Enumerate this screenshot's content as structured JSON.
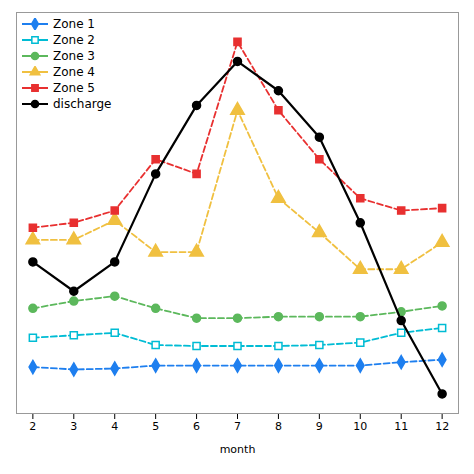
{
  "chart_data": {
    "type": "line",
    "xlabel": "month",
    "x": [
      2,
      3,
      4,
      5,
      6,
      7,
      8,
      9,
      10,
      11,
      12
    ],
    "xlim": [
      1.6,
      12.4
    ],
    "xticks": [
      2,
      3,
      4,
      5,
      6,
      7,
      8,
      9,
      10,
      11,
      12
    ],
    "ylim": [
      0.0,
      0.82
    ],
    "tick_labels": "x",
    "grid": false,
    "legend": "upper left",
    "series": [
      {
        "name": "Zone 1",
        "color": "#1e7fef",
        "marker": "diamond",
        "line_style": "dashed",
        "values": [
          0.095,
          0.09,
          0.092,
          0.098,
          0.098,
          0.098,
          0.098,
          0.098,
          0.098,
          0.105,
          0.11
        ]
      },
      {
        "name": "Zone 2",
        "color": "#00bcd4",
        "marker": "square-open",
        "line_style": "dashed",
        "values": [
          0.155,
          0.16,
          0.165,
          0.14,
          0.138,
          0.138,
          0.138,
          0.14,
          0.145,
          0.165,
          0.175
        ]
      },
      {
        "name": "Zone 3",
        "color": "#5cb85c",
        "marker": "circle",
        "line_style": "dashed",
        "values": [
          0.215,
          0.23,
          0.24,
          0.215,
          0.195,
          0.195,
          0.198,
          0.198,
          0.198,
          0.208,
          0.22
        ]
      },
      {
        "name": "Zone 4",
        "color": "#f0c040",
        "marker": "triangle",
        "line_style": "dashed",
        "values": [
          0.355,
          0.355,
          0.395,
          0.33,
          0.33,
          0.62,
          0.44,
          0.37,
          0.295,
          0.295,
          0.35
        ]
      },
      {
        "name": "Zone 5",
        "color": "#e83030",
        "marker": "square",
        "line_style": "dashed",
        "values": [
          0.38,
          0.39,
          0.415,
          0.52,
          0.49,
          0.76,
          0.62,
          0.52,
          0.44,
          0.415,
          0.42
        ]
      },
      {
        "name": "discharge",
        "color": "#000000",
        "marker": "circle",
        "line_style": "solid",
        "values": [
          0.31,
          0.25,
          0.31,
          0.49,
          0.63,
          0.72,
          0.66,
          0.565,
          0.39,
          0.19,
          0.04
        ]
      }
    ]
  }
}
